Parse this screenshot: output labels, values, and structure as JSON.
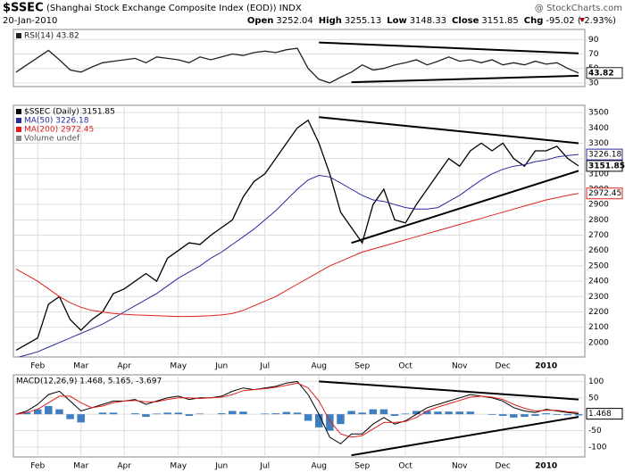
{
  "header": {
    "symbol": "$SSEC",
    "name": "(Shanghai Stock Exchange Composite Index (EOD)) INDX",
    "date": "20-Jan-2010",
    "watermark": "@ StockCharts.com",
    "quote": [
      {
        "label": "Open",
        "value": "3252.04"
      },
      {
        "label": "High",
        "value": "3255.13"
      },
      {
        "label": "Low",
        "value": "3148.33"
      },
      {
        "label": "Close",
        "value": "3151.85"
      },
      {
        "label": "Chg",
        "value": "-95.02 (-2.93%)"
      }
    ]
  },
  "chart_data": [
    {
      "type": "line",
      "ylim": [
        25,
        104
      ],
      "yticks": [
        30,
        50,
        70,
        90
      ],
      "grid": true,
      "series": [
        {
          "name": "RSI(14) 43.82",
          "color": "#222222",
          "tag": true,
          "values": [
            45,
            55,
            65,
            75,
            62,
            48,
            45,
            52,
            58,
            60,
            62,
            64,
            58,
            66,
            64,
            62,
            58,
            66,
            62,
            66,
            70,
            68,
            72,
            74,
            72,
            76,
            78,
            50,
            35,
            30,
            38,
            45,
            55,
            48,
            50,
            55,
            58,
            62,
            55,
            60,
            66,
            60,
            62,
            58,
            62,
            55,
            58,
            55,
            60,
            56,
            58,
            50,
            43.82
          ]
        }
      ],
      "trendlines": [
        {
          "x": [
            28,
            52
          ],
          "y": [
            86,
            71
          ]
        },
        {
          "x": [
            31,
            52
          ],
          "y": [
            31,
            40
          ]
        }
      ]
    },
    {
      "type": "line",
      "ylim": [
        1906,
        3547
      ],
      "yticks": [
        2000,
        2100,
        2200,
        2300,
        2400,
        2500,
        2600,
        2700,
        2800,
        2900,
        3000,
        3100,
        3200,
        3300,
        3400,
        3500
      ],
      "grid": true,
      "categories": [
        null,
        null,
        "Feb",
        null,
        null,
        null,
        "Mar",
        null,
        null,
        null,
        "Apr",
        null,
        null,
        null,
        null,
        "May",
        null,
        null,
        null,
        "Jun",
        null,
        null,
        null,
        "Jul",
        null,
        null,
        null,
        null,
        "Aug",
        null,
        null,
        null,
        "Sep",
        null,
        null,
        null,
        "Oct",
        null,
        null,
        null,
        null,
        "Nov",
        null,
        null,
        null,
        "Dec",
        null,
        null,
        null,
        "2010",
        null,
        null,
        null
      ],
      "notes": [
        "Volume undef"
      ],
      "series": [
        {
          "name": "$SSEC (Daily) 3151.85",
          "color": "#000000",
          "tag": true,
          "values": [
            1950,
            1990,
            2030,
            2250,
            2300,
            2150,
            2080,
            2150,
            2200,
            2320,
            2350,
            2400,
            2450,
            2400,
            2550,
            2600,
            2650,
            2640,
            2700,
            2750,
            2800,
            2950,
            3050,
            3100,
            3200,
            3300,
            3400,
            3450,
            3300,
            3100,
            2850,
            2750,
            2650,
            2900,
            3000,
            2800,
            2780,
            2900,
            3000,
            3100,
            3200,
            3150,
            3250,
            3300,
            3250,
            3300,
            3200,
            3150,
            3250,
            3250,
            3280,
            3200,
            3151.85
          ]
        },
        {
          "name": "MA(50) 3226.18",
          "color": "#2a2a9a",
          "tag": true,
          "values": [
            1900,
            1920,
            1940,
            1970,
            2000,
            2030,
            2060,
            2090,
            2120,
            2160,
            2200,
            2240,
            2280,
            2320,
            2370,
            2420,
            2460,
            2500,
            2550,
            2590,
            2640,
            2690,
            2740,
            2800,
            2860,
            2930,
            3000,
            3060,
            3090,
            3080,
            3040,
            3000,
            2960,
            2930,
            2920,
            2900,
            2880,
            2870,
            2870,
            2880,
            2920,
            2960,
            3010,
            3060,
            3100,
            3130,
            3150,
            3160,
            3180,
            3190,
            3210,
            3220,
            3226.18
          ]
        },
        {
          "name": "MA(200) 2972.45",
          "color": "#e02020",
          "tag": true,
          "values": [
            2480,
            2440,
            2400,
            2350,
            2300,
            2260,
            2230,
            2210,
            2200,
            2190,
            2185,
            2180,
            2178,
            2175,
            2172,
            2170,
            2170,
            2172,
            2175,
            2180,
            2190,
            2210,
            2240,
            2270,
            2300,
            2340,
            2380,
            2420,
            2460,
            2500,
            2530,
            2560,
            2590,
            2610,
            2630,
            2650,
            2670,
            2690,
            2710,
            2730,
            2750,
            2770,
            2790,
            2810,
            2830,
            2850,
            2870,
            2890,
            2910,
            2930,
            2945,
            2960,
            2972.45
          ]
        }
      ],
      "trendlines": [
        {
          "x": [
            28,
            52
          ],
          "y": [
            3470,
            3300
          ]
        },
        {
          "x": [
            31,
            52
          ],
          "y": [
            2650,
            3120
          ]
        }
      ]
    },
    {
      "type": "line",
      "ylim": [
        -130,
        120
      ],
      "yticks": [
        -100,
        -50,
        0,
        50,
        100
      ],
      "grid": true,
      "categories": [
        null,
        null,
        "Feb",
        null,
        null,
        null,
        "Mar",
        null,
        null,
        null,
        "Apr",
        null,
        null,
        null,
        null,
        "May",
        null,
        null,
        null,
        "Jun",
        null,
        null,
        null,
        "Jul",
        null,
        null,
        null,
        null,
        "Aug",
        null,
        null,
        null,
        "Sep",
        null,
        null,
        null,
        "Oct",
        null,
        null,
        null,
        null,
        "Nov",
        null,
        null,
        null,
        "Dec",
        null,
        null,
        null,
        "2010",
        null,
        null,
        null
      ],
      "legend": "MACD(12,26,9) 1.468, 5.165, -3.697",
      "series": [
        {
          "style": "bars",
          "color": "#3f7fbf",
          "values": [
            0,
            5,
            15,
            25,
            15,
            -15,
            -25,
            0,
            5,
            5,
            0,
            3,
            -8,
            2,
            5,
            5,
            -5,
            2,
            0,
            3,
            10,
            8,
            0,
            2,
            3,
            7,
            5,
            -20,
            -40,
            -50,
            -30,
            10,
            5,
            15,
            15,
            -5,
            2,
            10,
            10,
            8,
            8,
            8,
            8,
            0,
            -2,
            -5,
            -10,
            -8,
            -5,
            3,
            -2,
            -3,
            -3.697
          ]
        },
        {
          "color": "#000000",
          "tag": true,
          "values": [
            0,
            10,
            30,
            60,
            70,
            40,
            10,
            20,
            30,
            40,
            40,
            45,
            30,
            40,
            50,
            55,
            45,
            50,
            50,
            55,
            70,
            80,
            75,
            80,
            85,
            95,
            100,
            60,
            0,
            -70,
            -90,
            -60,
            -60,
            -30,
            -10,
            -30,
            -20,
            0,
            20,
            30,
            40,
            50,
            60,
            55,
            50,
            40,
            20,
            10,
            5,
            15,
            10,
            5,
            1.468
          ]
        },
        {
          "color": "#e02020",
          "values": [
            0,
            5,
            15,
            35,
            55,
            55,
            35,
            20,
            25,
            35,
            40,
            42,
            38,
            38,
            45,
            50,
            50,
            48,
            50,
            52,
            60,
            72,
            75,
            78,
            82,
            88,
            95,
            80,
            40,
            -20,
            -60,
            -70,
            -65,
            -45,
            -25,
            -25,
            -22,
            -10,
            10,
            22,
            32,
            42,
            52,
            55,
            52,
            45,
            30,
            18,
            10,
            12,
            12,
            8,
            5.165
          ]
        }
      ],
      "trendlines": [
        {
          "x": [
            28,
            52
          ],
          "y": [
            100,
            45
          ]
        },
        {
          "x": [
            31,
            52
          ],
          "y": [
            -125,
            -8
          ]
        }
      ]
    }
  ]
}
